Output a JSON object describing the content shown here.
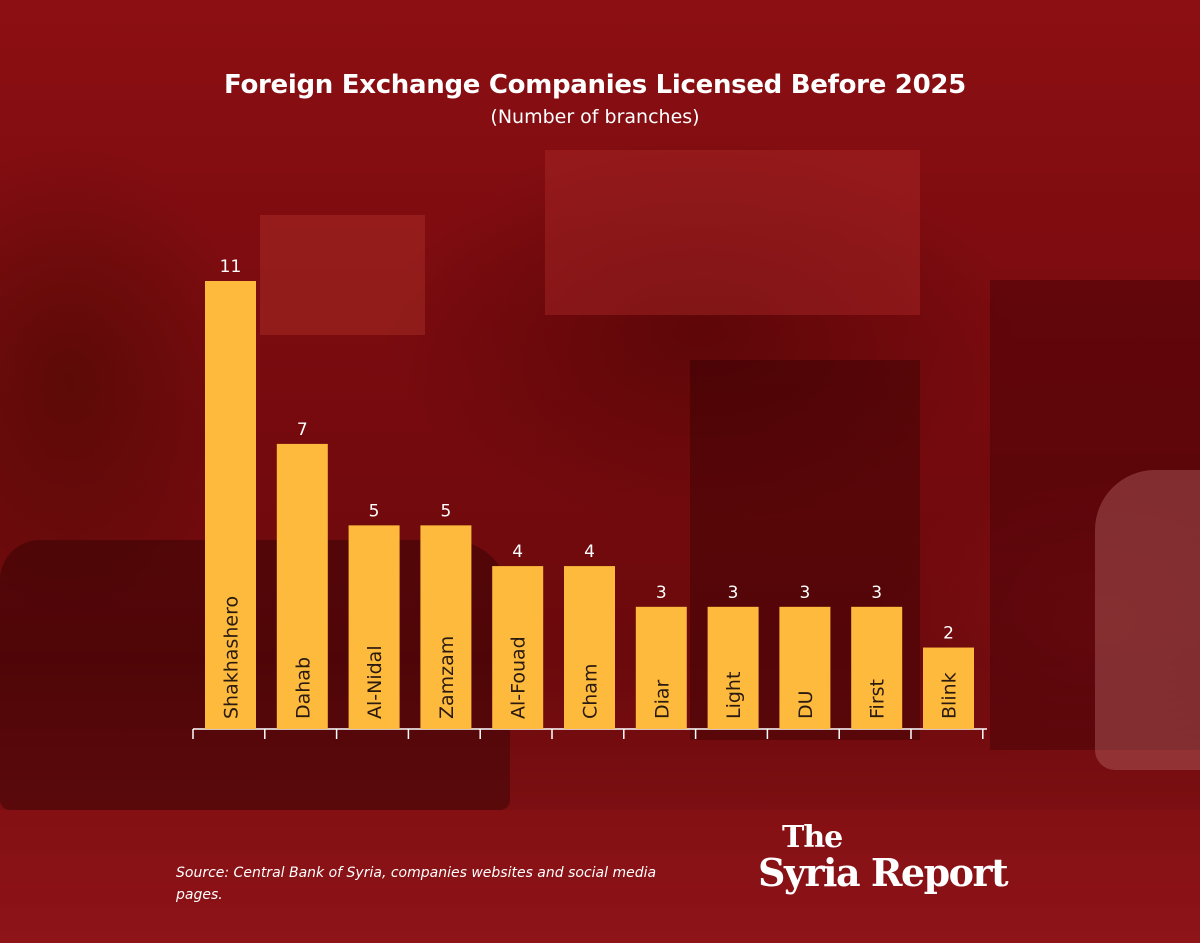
{
  "title": "Foreign Exchange Companies Licensed Before 2025",
  "subtitle": "(Number of branches)",
  "source": "Source: Central Bank of Syria, companies websites and social media pages.",
  "logo": {
    "the": "The",
    "name": "Syria Report"
  },
  "colors": {
    "bar": "#fdba3c",
    "text": "#ffffff",
    "bar_label": "#2b1a10",
    "axis": "#ffffff"
  },
  "chart_data": {
    "type": "bar",
    "categories": [
      "Shakhashero",
      "Dahab",
      "Al-Nidal",
      "Zamzam",
      "Al-Fouad",
      "Cham",
      "Diar",
      "Light",
      "DU",
      "First",
      "Blink"
    ],
    "values": [
      11,
      7,
      5,
      5,
      4,
      4,
      3,
      3,
      3,
      3,
      2
    ],
    "title": "Foreign Exchange Companies Licensed Before 2025",
    "subtitle": "(Number of branches)",
    "ylim": [
      0,
      11
    ],
    "grid": false,
    "data_labels": true
  }
}
